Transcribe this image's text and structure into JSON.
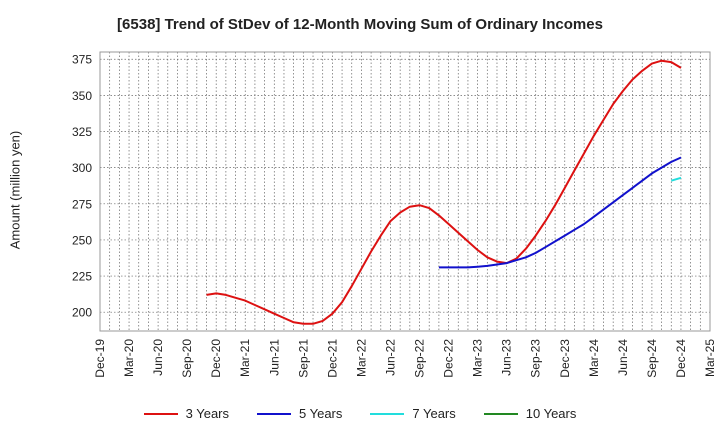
{
  "chart_data": {
    "type": "line",
    "title": "[6538]  Trend of StDev of 12-Month Moving Sum of Ordinary Incomes",
    "xlabel": "",
    "ylabel": "Amount (million yen)",
    "ylim": [
      187,
      380
    ],
    "yticks": [
      200,
      225,
      250,
      275,
      300,
      325,
      350,
      375
    ],
    "x_tick_labels": [
      "Dec-19",
      "Mar-20",
      "Jun-20",
      "Sep-20",
      "Dec-20",
      "Mar-21",
      "Jun-21",
      "Sep-21",
      "Dec-21",
      "Mar-22",
      "Jun-22",
      "Sep-22",
      "Dec-22",
      "Mar-23",
      "Jun-23",
      "Sep-23",
      "Dec-23",
      "Mar-24",
      "Jun-24",
      "Sep-24",
      "Dec-24",
      "Mar-25"
    ],
    "grid": true,
    "legend_position": "bottom",
    "series": [
      {
        "name": "3 Years",
        "color": "#dd1111",
        "x": [
          "Nov-20",
          "Dec-20",
          "Jan-21",
          "Feb-21",
          "Mar-21",
          "Apr-21",
          "May-21",
          "Jun-21",
          "Jul-21",
          "Aug-21",
          "Sep-21",
          "Oct-21",
          "Nov-21",
          "Dec-21",
          "Jan-22",
          "Feb-22",
          "Mar-22",
          "Apr-22",
          "May-22",
          "Jun-22",
          "Jul-22",
          "Aug-22",
          "Sep-22",
          "Oct-22",
          "Nov-22",
          "Dec-22",
          "Jan-23",
          "Feb-23",
          "Mar-23",
          "Apr-23",
          "May-23",
          "Jun-23",
          "Jul-23",
          "Aug-23",
          "Sep-23",
          "Oct-23",
          "Nov-23",
          "Dec-23",
          "Jan-24",
          "Feb-24",
          "Mar-24",
          "Apr-24",
          "May-24",
          "Jun-24",
          "Jul-24",
          "Aug-24",
          "Sep-24",
          "Oct-24",
          "Nov-24",
          "Dec-24"
        ],
        "values": [
          212,
          213,
          212,
          210,
          208,
          205,
          202,
          199,
          196,
          193,
          192,
          192,
          194,
          199,
          207,
          218,
          230,
          242,
          253,
          263,
          269,
          273,
          274,
          272,
          267,
          261,
          255,
          249,
          243,
          238,
          235,
          234,
          237,
          244,
          253,
          263,
          274,
          286,
          298,
          310,
          322,
          333,
          344,
          353,
          361,
          367,
          372,
          374,
          373,
          369
        ]
      },
      {
        "name": "5 Years",
        "color": "#1111cc",
        "x": [
          "Nov-22",
          "Dec-22",
          "Jan-23",
          "Feb-23",
          "Mar-23",
          "Apr-23",
          "May-23",
          "Jun-23",
          "Jul-23",
          "Aug-23",
          "Sep-23",
          "Oct-23",
          "Nov-23",
          "Dec-23",
          "Jan-24",
          "Feb-24",
          "Mar-24",
          "Apr-24",
          "May-24",
          "Jun-24",
          "Jul-24",
          "Aug-24",
          "Sep-24",
          "Oct-24",
          "Nov-24",
          "Dec-24"
        ],
        "values": [
          231,
          231,
          231,
          231,
          231.5,
          232,
          233,
          234,
          236,
          238,
          241,
          245,
          249,
          253,
          257,
          261,
          266,
          271,
          276,
          281,
          286,
          291,
          296,
          300,
          304,
          307
        ]
      },
      {
        "name": "7 Years",
        "color": "#22dddd",
        "x": [
          "Nov-24",
          "Dec-24"
        ],
        "values": [
          291,
          293
        ]
      },
      {
        "name": "10 Years",
        "color": "#228822",
        "x": [],
        "values": []
      }
    ]
  }
}
